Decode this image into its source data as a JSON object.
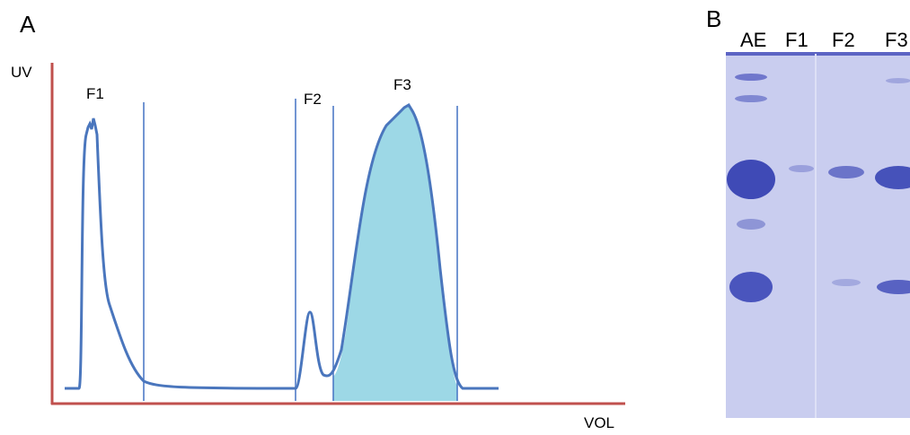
{
  "panel_a": {
    "label": "A",
    "y_axis": "UV",
    "x_axis": "VOL",
    "peaks": [
      "F1",
      "F2",
      "F3"
    ]
  },
  "panel_b": {
    "label": "B",
    "lanes": [
      "AE",
      "F1",
      "F2",
      "F3"
    ]
  }
}
